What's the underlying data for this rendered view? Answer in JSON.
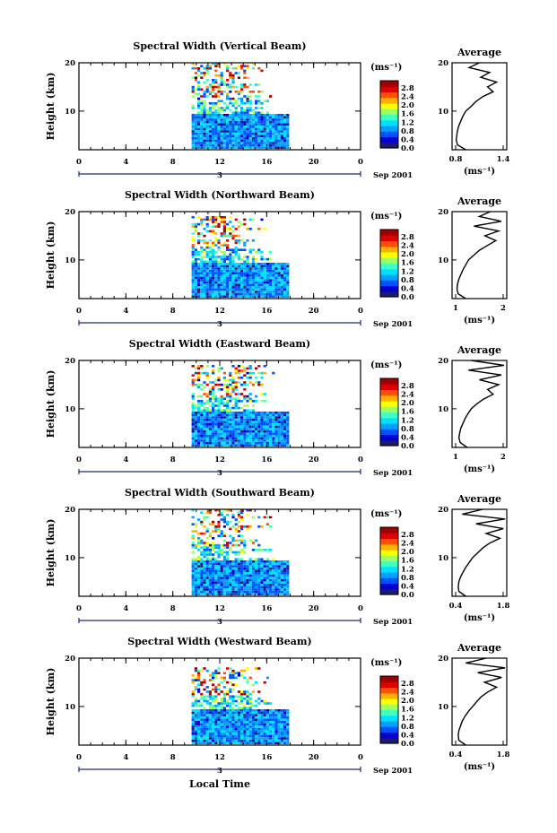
{
  "figure": {
    "xlabel": "Local Time",
    "date_label": "Sep 2001",
    "day_marker": "3",
    "ylabel": "Height (km)",
    "avg_title": "Average",
    "unit_label": "(ms⁻¹)",
    "colormap": [
      "#1a1a6e",
      "#0000d0",
      "#0050ff",
      "#00a0ff",
      "#00e0ff",
      "#40ffc0",
      "#a0ff60",
      "#ffff00",
      "#ffb000",
      "#ff5000",
      "#e00000",
      "#a00000"
    ]
  },
  "chart_data": [
    {
      "type": "heatmap",
      "title": "Spectral Width (Vertical Beam)",
      "x_ticks": [
        "0",
        "4",
        "8",
        "12",
        "16",
        "20",
        "0"
      ],
      "y_ticks": [
        "20",
        "10"
      ],
      "xlim": [
        0,
        24
      ],
      "ylim": [
        2,
        20
      ],
      "data_extent": {
        "x": [
          9.6,
          17.8
        ],
        "y": [
          2.2,
          19.6
        ]
      },
      "colorbar": {
        "ticks": [
          "2.8",
          "2.4",
          "2.0",
          "1.6",
          "1.2",
          "0.8",
          "0.4",
          "0.0"
        ],
        "range": [
          0,
          3.0
        ]
      },
      "average_profile": {
        "x_ticks": [
          "0.8",
          "1.4"
        ],
        "xlim": [
          0.7,
          1.5
        ],
        "y_ticks": [
          "20",
          "10"
        ],
        "height": [
          2,
          3,
          4,
          5,
          6,
          7,
          8,
          9,
          10,
          11,
          12,
          13,
          14,
          15,
          16,
          17,
          18,
          19,
          20
        ],
        "value": [
          0.9,
          0.78,
          0.76,
          0.77,
          0.78,
          0.8,
          0.83,
          0.86,
          0.9,
          0.98,
          1.05,
          1.15,
          1.3,
          1.22,
          1.35,
          1.12,
          1.25,
          0.95,
          1.1
        ]
      }
    },
    {
      "type": "heatmap",
      "title": "Spectral Width (Northward Beam)",
      "x_ticks": [
        "0",
        "4",
        "8",
        "12",
        "16",
        "20",
        "0"
      ],
      "y_ticks": [
        "20",
        "10"
      ],
      "xlim": [
        0,
        24
      ],
      "ylim": [
        2,
        20
      ],
      "data_extent": {
        "x": [
          9.6,
          17.8
        ],
        "y": [
          2.2,
          19.0
        ]
      },
      "colorbar": {
        "ticks": [
          "2.8",
          "2.4",
          "2.0",
          "1.6",
          "1.2",
          "0.8",
          "0.4",
          "0.0"
        ],
        "range": [
          0,
          3.0
        ]
      },
      "average_profile": {
        "x_ticks": [
          "1",
          "2"
        ],
        "xlim": [
          0.4,
          2.4
        ],
        "y_ticks": [
          "20",
          "10"
        ],
        "height": [
          2,
          3,
          4,
          5,
          6,
          7,
          8,
          9,
          10,
          11,
          12,
          13,
          14,
          15,
          16,
          17,
          18,
          19,
          20
        ],
        "value": [
          0.9,
          0.62,
          0.58,
          0.6,
          0.65,
          0.72,
          0.8,
          0.9,
          1.0,
          1.2,
          1.4,
          1.7,
          2.0,
          1.6,
          2.1,
          1.2,
          2.2,
          1.4,
          1.8
        ]
      }
    },
    {
      "type": "heatmap",
      "title": "Spectral Width (Eastward Beam)",
      "x_ticks": [
        "0",
        "4",
        "8",
        "12",
        "16",
        "20",
        "0"
      ],
      "y_ticks": [
        "20",
        "10"
      ],
      "xlim": [
        0,
        24
      ],
      "ylim": [
        2,
        20
      ],
      "data_extent": {
        "x": [
          9.6,
          17.8
        ],
        "y": [
          2.2,
          19.0
        ]
      },
      "colorbar": {
        "ticks": [
          "2.8",
          "2.4",
          "2.0",
          "1.6",
          "1.2",
          "0.8",
          "0.4",
          "0.0"
        ],
        "range": [
          0,
          3.0
        ]
      },
      "average_profile": {
        "x_ticks": [
          "1",
          "2"
        ],
        "xlim": [
          0.3,
          2.3
        ],
        "y_ticks": [
          "20",
          "10"
        ],
        "height": [
          2,
          3,
          4,
          5,
          6,
          7,
          8,
          9,
          10,
          11,
          12,
          13,
          14,
          15,
          16,
          17,
          18,
          19,
          20
        ],
        "value": [
          0.85,
          0.6,
          0.55,
          0.58,
          0.62,
          0.7,
          0.78,
          0.88,
          1.0,
          1.2,
          1.45,
          1.8,
          1.6,
          2.0,
          1.3,
          2.1,
          0.9,
          2.2,
          1.0
        ]
      }
    },
    {
      "type": "heatmap",
      "title": "Spectral Width (Southward Beam)",
      "x_ticks": [
        "0",
        "4",
        "8",
        "12",
        "16",
        "20",
        "0"
      ],
      "y_ticks": [
        "20",
        "10"
      ],
      "xlim": [
        0,
        24
      ],
      "ylim": [
        2,
        20
      ],
      "data_extent": {
        "x": [
          9.6,
          17.8
        ],
        "y": [
          2.2,
          19.6
        ]
      },
      "colorbar": {
        "ticks": [
          "2.8",
          "2.4",
          "2.0",
          "1.6",
          "1.2",
          "0.8",
          "0.4",
          "0.0"
        ],
        "range": [
          0,
          3.0
        ]
      },
      "average_profile": {
        "x_ticks": [
          "0.4",
          "1.8"
        ],
        "xlim": [
          0.3,
          1.9
        ],
        "y_ticks": [
          "20",
          "10"
        ],
        "height": [
          2,
          3,
          4,
          5,
          6,
          7,
          8,
          9,
          10,
          11,
          12,
          13,
          14,
          15,
          16,
          17,
          18,
          19,
          20
        ],
        "value": [
          0.7,
          0.5,
          0.48,
          0.5,
          0.55,
          0.62,
          0.7,
          0.8,
          0.9,
          1.05,
          1.2,
          1.4,
          1.7,
          1.3,
          1.8,
          1.0,
          1.85,
          0.6,
          1.2
        ]
      }
    },
    {
      "type": "heatmap",
      "title": "Spectral Width (Westward Beam)",
      "x_ticks": [
        "0",
        "4",
        "8",
        "12",
        "16",
        "20",
        "0"
      ],
      "y_ticks": [
        "20",
        "10"
      ],
      "xlim": [
        0,
        24
      ],
      "ylim": [
        2,
        20
      ],
      "data_extent": {
        "x": [
          9.6,
          17.8
        ],
        "y": [
          2.2,
          17.8
        ]
      },
      "colorbar": {
        "ticks": [
          "2.8",
          "2.4",
          "2.0",
          "1.6",
          "1.2",
          "0.8",
          "0.4",
          "0.0"
        ],
        "range": [
          0,
          3.0
        ]
      },
      "average_profile": {
        "x_ticks": [
          "0.4",
          "1.8"
        ],
        "xlim": [
          0.3,
          1.9
        ],
        "y_ticks": [
          "20",
          "10"
        ],
        "height": [
          2,
          3,
          4,
          5,
          6,
          7,
          8,
          9,
          10,
          11,
          12,
          13,
          14,
          15,
          16,
          17,
          18,
          19,
          20
        ],
        "value": [
          0.7,
          0.5,
          0.48,
          0.5,
          0.55,
          0.6,
          0.68,
          0.78,
          0.9,
          1.02,
          1.15,
          1.35,
          1.6,
          1.25,
          1.75,
          1.05,
          1.85,
          0.7,
          1.3
        ]
      }
    }
  ]
}
